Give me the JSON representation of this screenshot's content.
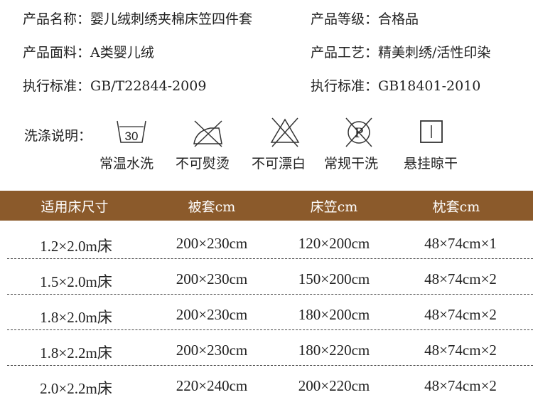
{
  "specs": {
    "name_label": "产品名称：",
    "name_value": "婴儿绒刺绣夹棉床笠四件套",
    "grade_label": "产品等级：",
    "grade_value": "合格品",
    "fabric_label": "产品面料：",
    "fabric_value": "A类婴儿绒",
    "craft_label": "产品工艺：",
    "craft_value": "精美刺绣/活性印染",
    "standard_label": "执行标准：",
    "standard_value": "GB/T22844-2009",
    "standard2_label": "执行标准：",
    "standard2_value": "GB18401-2010"
  },
  "wash": {
    "label": "洗涤说明：",
    "icons": [
      {
        "icon": "wash-30-icon",
        "text": "30",
        "label": "常温水洗"
      },
      {
        "icon": "no-iron-icon",
        "label": "不可熨烫"
      },
      {
        "icon": "no-bleach-icon",
        "label": "不可漂白"
      },
      {
        "icon": "no-dryclean-icon",
        "text": "P",
        "label": "常规干洗"
      },
      {
        "icon": "hang-dry-icon",
        "label": "悬挂晾干"
      }
    ]
  },
  "table": {
    "header_color": "#8b5a2b",
    "headers": [
      "适用床尺寸",
      "被套cm",
      "床笠cm",
      "枕套cm"
    ],
    "rows": [
      [
        "1.2×2.0m床",
        "200×230cm",
        "120×200cm",
        "48×74cm×1"
      ],
      [
        "1.5×2.0m床",
        "200×230cm",
        "150×200cm",
        "48×74cm×2"
      ],
      [
        "1.8×2.0m床",
        "200×230cm",
        "180×200cm",
        "48×74cm×2"
      ],
      [
        "1.8×2.2m床",
        "200×230cm",
        "180×220cm",
        "48×74cm×2"
      ],
      [
        "2.0×2.2m床",
        "220×240cm",
        "200×220cm",
        "48×74cm×2"
      ]
    ]
  }
}
